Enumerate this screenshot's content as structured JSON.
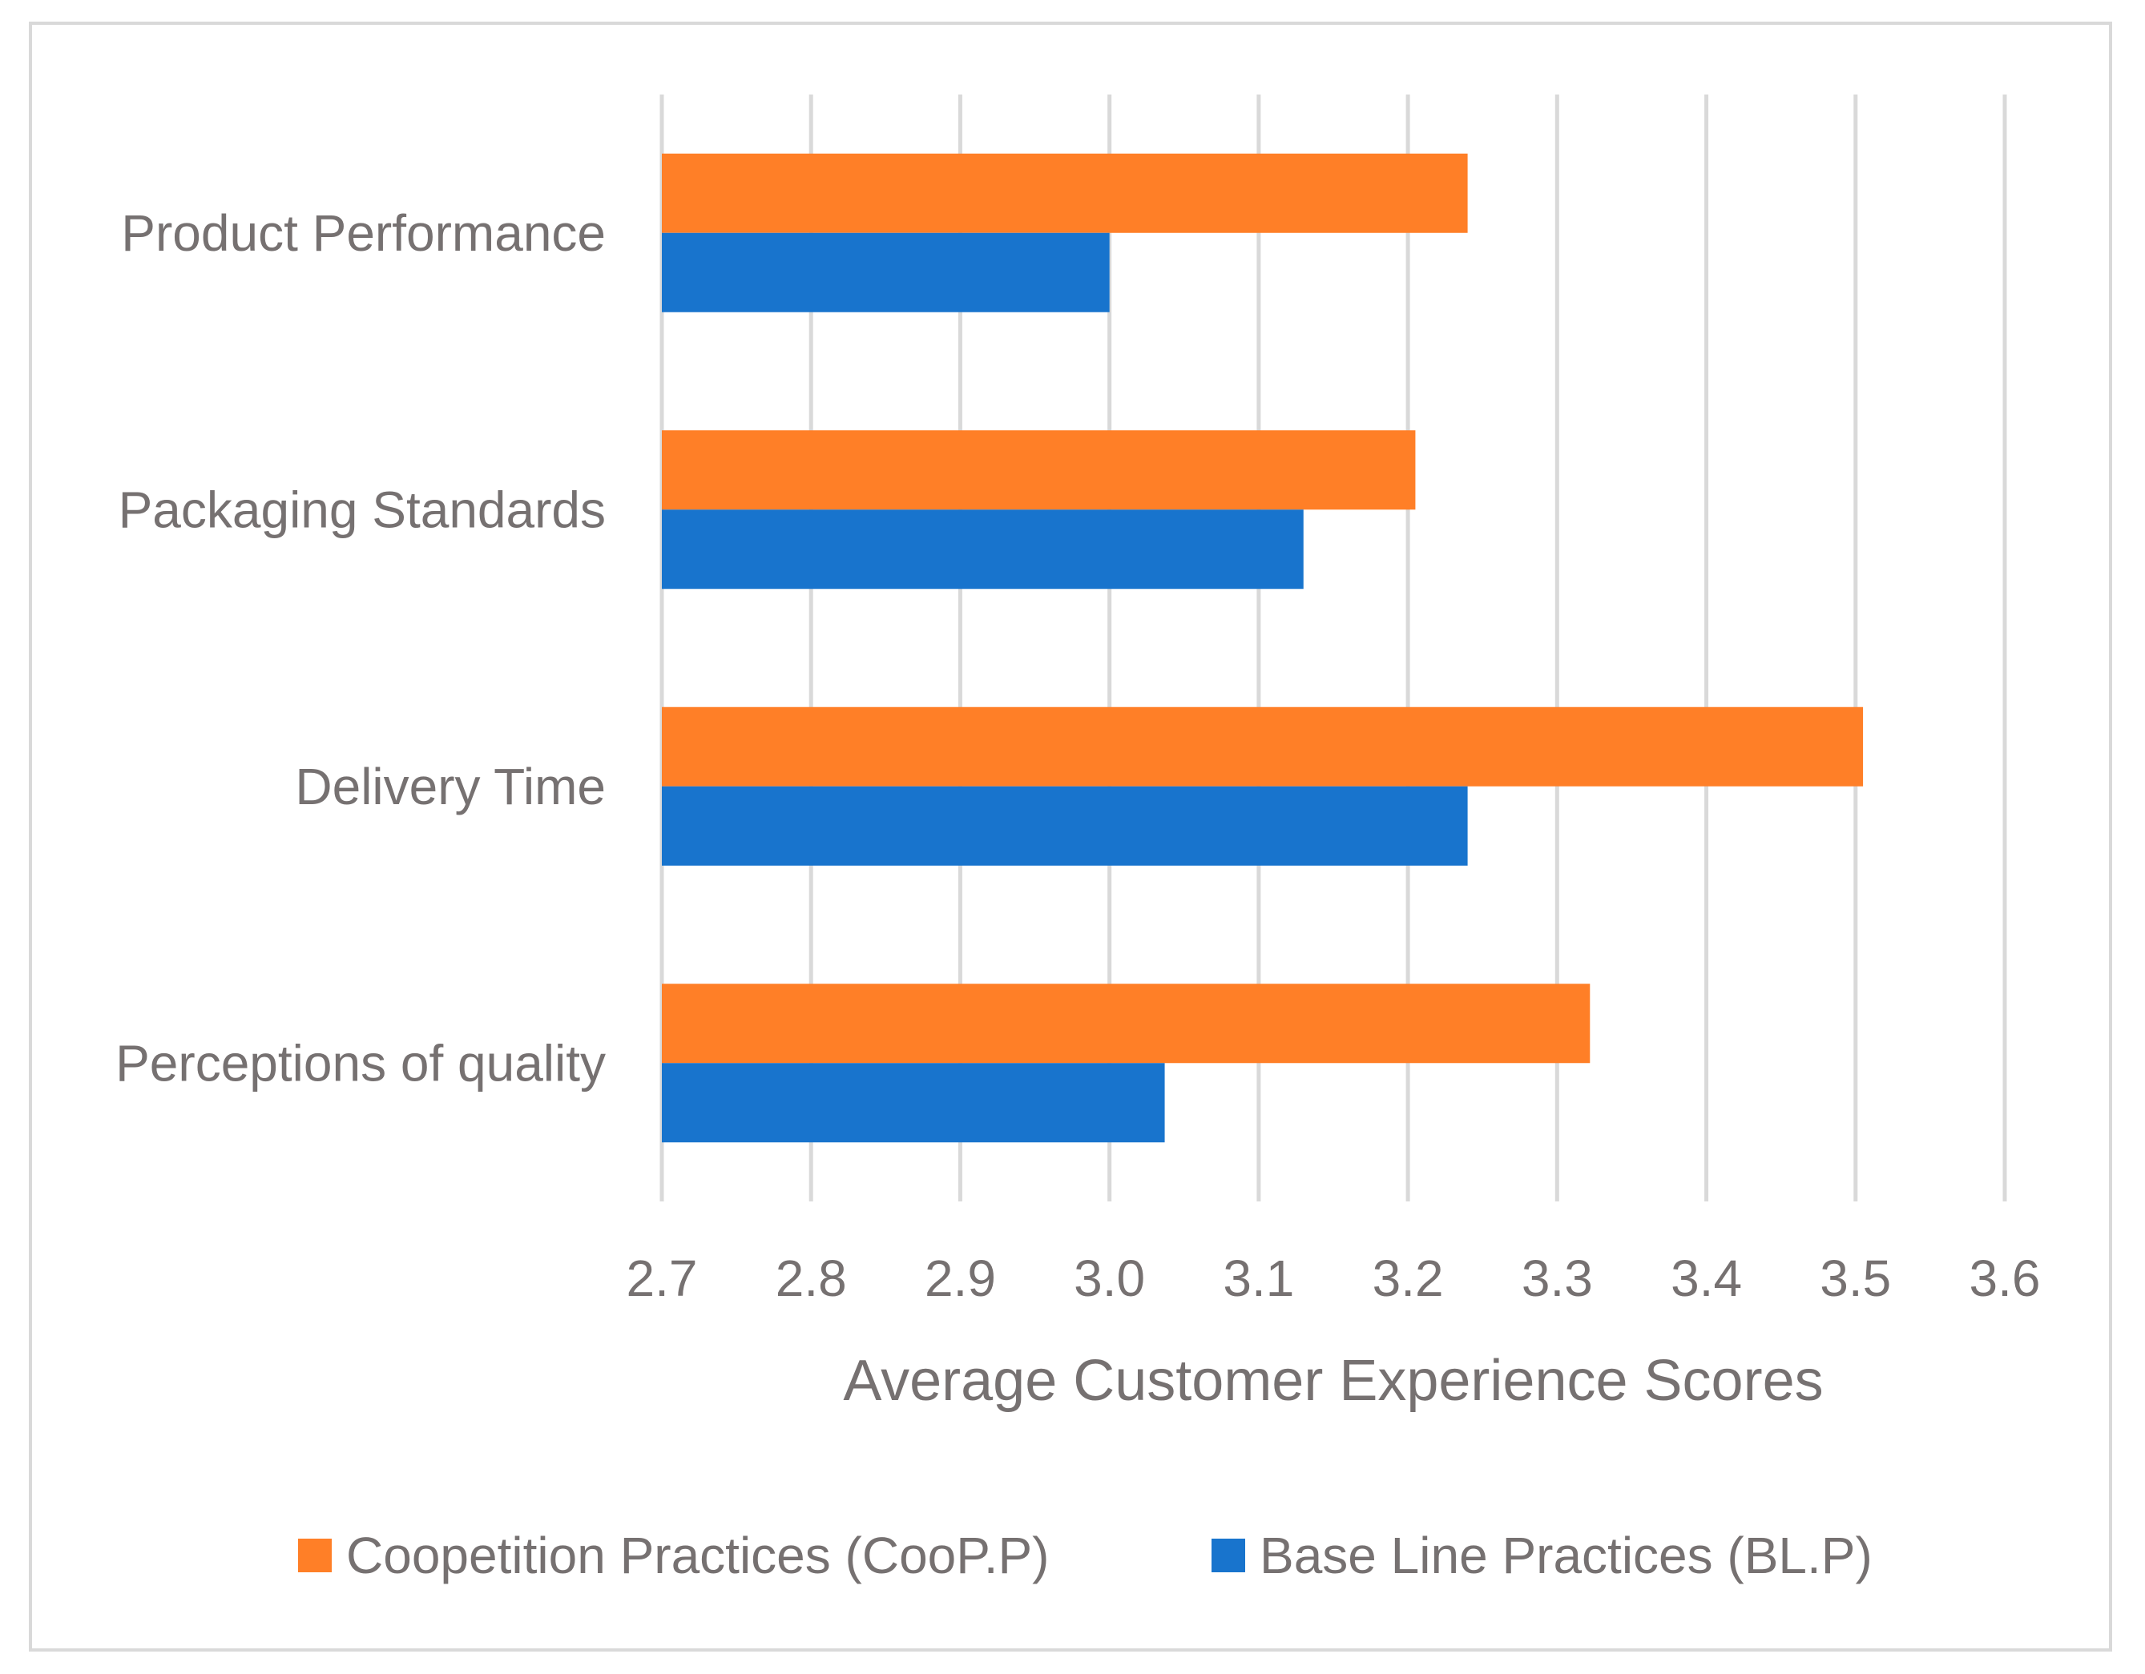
{
  "chart_data": {
    "type": "bar",
    "orientation": "horizontal",
    "categories": [
      "Product Performance",
      "Packaging Standards",
      "Delivery Time",
      "Perceptions of quality"
    ],
    "series": [
      {
        "name": "Coopetition Practices (CooP.P)",
        "color": "#ff7f27",
        "values": [
          3.24,
          3.205,
          3.505,
          3.322
        ]
      },
      {
        "name": "Base Line Practices (BL.P)",
        "color": "#1874cd",
        "values": [
          3.0,
          3.13,
          3.24,
          3.037
        ]
      }
    ],
    "xlabel": "Average Customer Experience Scores",
    "ylabel": "",
    "xlim": [
      2.7,
      3.6
    ],
    "xticks": [
      "2.7",
      "2.8",
      "2.9",
      "3.0",
      "3.1",
      "3.2",
      "3.3",
      "3.4",
      "3.5",
      "3.6"
    ],
    "grid": true,
    "legend_position": "bottom"
  }
}
